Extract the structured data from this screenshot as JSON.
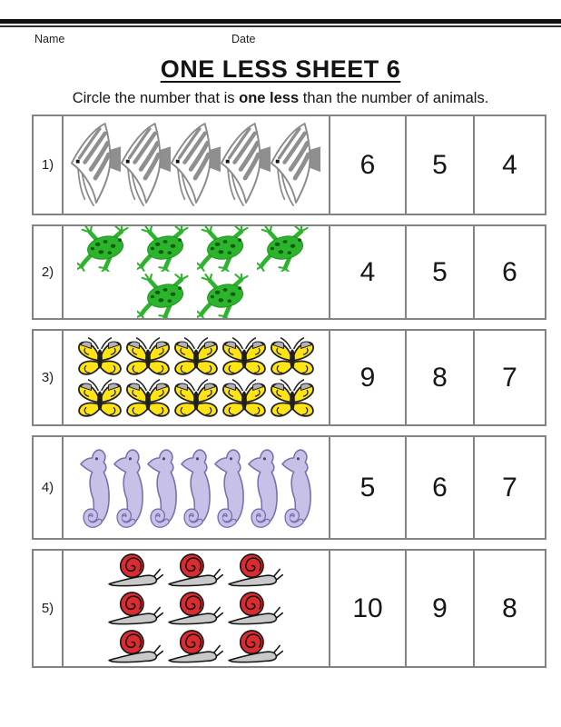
{
  "header": {
    "name_label": "Name",
    "date_label": "Date",
    "title": "ONE LESS SHEET 6",
    "instruction_prefix": "Circle the number that is ",
    "instruction_bold": "one less",
    "instruction_suffix": " than the number of animals."
  },
  "colors": {
    "frog_green": "#2db42d",
    "butterfly_yellow": "#ffe415",
    "seahorse_lavender": "#c7c1e8",
    "seahorse_outline": "#7670ae",
    "snail_shell_red": "#d92b30",
    "snail_body_gray": "#c9c9c9",
    "fish_gray": "#8f8f8f",
    "table_border_gray": "#838383"
  },
  "rows": [
    {
      "label": "1)",
      "animal": "angelfish",
      "count": 5,
      "lines": [
        5
      ],
      "choices": [
        "6",
        "5",
        "4"
      ]
    },
    {
      "label": "2)",
      "animal": "frog",
      "count": 6,
      "lines": [
        4,
        2
      ],
      "choices": [
        "4",
        "5",
        "6"
      ]
    },
    {
      "label": "3)",
      "animal": "butterfly",
      "count": 10,
      "lines": [
        5,
        5
      ],
      "choices": [
        "9",
        "8",
        "7"
      ]
    },
    {
      "label": "4)",
      "animal": "seahorse",
      "count": 7,
      "lines": [
        7
      ],
      "choices": [
        "5",
        "6",
        "7"
      ]
    },
    {
      "label": "5)",
      "animal": "snail",
      "count": 9,
      "lines": [
        3,
        3,
        3
      ],
      "choices": [
        "10",
        "9",
        "8"
      ]
    }
  ]
}
